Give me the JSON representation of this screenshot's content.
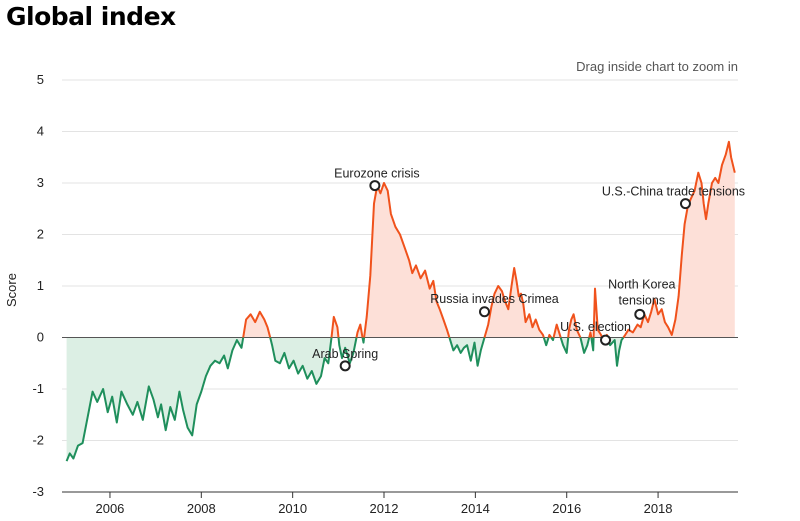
{
  "header": {
    "title": "Global index"
  },
  "chart_hint": "Drag inside chart to zoom in",
  "chart_data": {
    "type": "area",
    "title": "Global index",
    "xlabel": "",
    "ylabel": "Score",
    "xlim": [
      2004.95,
      2019.75
    ],
    "ylim": [
      -3,
      5
    ],
    "y_ticks": [
      5,
      4,
      3,
      2,
      1,
      0,
      -1,
      -2,
      -3
    ],
    "x_ticks": [
      2006,
      2008,
      2010,
      2012,
      2014,
      2016,
      2018
    ],
    "grid": true,
    "colors": {
      "positive": "#f0521c",
      "negative": "#1f8f5c",
      "positive_fill": "#fde0d8",
      "negative_fill": "#dcefe4"
    },
    "series": [
      {
        "values": [
          [
            2005.05,
            -2.4
          ],
          [
            2005.12,
            -2.25
          ],
          [
            2005.2,
            -2.35
          ],
          [
            2005.3,
            -2.1
          ],
          [
            2005.4,
            -2.05
          ],
          [
            2005.5,
            -1.6
          ],
          [
            2005.62,
            -1.05
          ],
          [
            2005.72,
            -1.25
          ],
          [
            2005.85,
            -1.0
          ],
          [
            2005.95,
            -1.45
          ],
          [
            2006.05,
            -1.15
          ],
          [
            2006.15,
            -1.65
          ],
          [
            2006.25,
            -1.05
          ],
          [
            2006.38,
            -1.3
          ],
          [
            2006.5,
            -1.5
          ],
          [
            2006.6,
            -1.25
          ],
          [
            2006.72,
            -1.6
          ],
          [
            2006.85,
            -0.95
          ],
          [
            2006.95,
            -1.2
          ],
          [
            2007.05,
            -1.55
          ],
          [
            2007.12,
            -1.3
          ],
          [
            2007.22,
            -1.8
          ],
          [
            2007.32,
            -1.35
          ],
          [
            2007.42,
            -1.6
          ],
          [
            2007.52,
            -1.05
          ],
          [
            2007.6,
            -1.4
          ],
          [
            2007.7,
            -1.75
          ],
          [
            2007.8,
            -1.9
          ],
          [
            2007.9,
            -1.3
          ],
          [
            2008.0,
            -1.05
          ],
          [
            2008.1,
            -0.75
          ],
          [
            2008.2,
            -0.55
          ],
          [
            2008.3,
            -0.45
          ],
          [
            2008.4,
            -0.5
          ],
          [
            2008.5,
            -0.35
          ],
          [
            2008.58,
            -0.6
          ],
          [
            2008.68,
            -0.25
          ],
          [
            2008.78,
            -0.05
          ],
          [
            2008.88,
            -0.2
          ],
          [
            2008.98,
            0.35
          ],
          [
            2009.08,
            0.45
          ],
          [
            2009.18,
            0.3
          ],
          [
            2009.28,
            0.5
          ],
          [
            2009.38,
            0.35
          ],
          [
            2009.45,
            0.2
          ],
          [
            2009.55,
            -0.15
          ],
          [
            2009.62,
            -0.45
          ],
          [
            2009.72,
            -0.5
          ],
          [
            2009.82,
            -0.3
          ],
          [
            2009.92,
            -0.6
          ],
          [
            2010.02,
            -0.45
          ],
          [
            2010.12,
            -0.7
          ],
          [
            2010.22,
            -0.55
          ],
          [
            2010.32,
            -0.8
          ],
          [
            2010.42,
            -0.65
          ],
          [
            2010.52,
            -0.9
          ],
          [
            2010.62,
            -0.75
          ],
          [
            2010.7,
            -0.4
          ],
          [
            2010.78,
            -0.5
          ],
          [
            2010.85,
            0.0
          ],
          [
            2010.9,
            0.4
          ],
          [
            2010.98,
            0.2
          ],
          [
            2011.02,
            -0.15
          ],
          [
            2011.08,
            -0.4
          ],
          [
            2011.15,
            -0.2
          ],
          [
            2011.25,
            -0.5
          ],
          [
            2011.33,
            -0.3
          ],
          [
            2011.42,
            0.1
          ],
          [
            2011.48,
            0.25
          ],
          [
            2011.55,
            -0.1
          ],
          [
            2011.62,
            0.4
          ],
          [
            2011.7,
            1.2
          ],
          [
            2011.78,
            2.6
          ],
          [
            2011.85,
            2.95
          ],
          [
            2011.92,
            2.8
          ],
          [
            2012.0,
            3.0
          ],
          [
            2012.08,
            2.85
          ],
          [
            2012.15,
            2.4
          ],
          [
            2012.25,
            2.15
          ],
          [
            2012.35,
            2.0
          ],
          [
            2012.45,
            1.75
          ],
          [
            2012.55,
            1.5
          ],
          [
            2012.62,
            1.25
          ],
          [
            2012.7,
            1.4
          ],
          [
            2012.8,
            1.15
          ],
          [
            2012.9,
            1.3
          ],
          [
            2013.0,
            0.95
          ],
          [
            2013.08,
            1.1
          ],
          [
            2013.15,
            0.7
          ],
          [
            2013.22,
            0.55
          ],
          [
            2013.3,
            0.35
          ],
          [
            2013.38,
            0.15
          ],
          [
            2013.45,
            -0.05
          ],
          [
            2013.52,
            -0.25
          ],
          [
            2013.6,
            -0.15
          ],
          [
            2013.68,
            -0.3
          ],
          [
            2013.75,
            -0.2
          ],
          [
            2013.82,
            -0.15
          ],
          [
            2013.9,
            -0.45
          ],
          [
            2013.98,
            -0.1
          ],
          [
            2014.05,
            -0.55
          ],
          [
            2014.12,
            -0.25
          ],
          [
            2014.2,
            0.0
          ],
          [
            2014.28,
            0.25
          ],
          [
            2014.35,
            0.6
          ],
          [
            2014.42,
            0.85
          ],
          [
            2014.5,
            1.0
          ],
          [
            2014.58,
            0.9
          ],
          [
            2014.65,
            0.7
          ],
          [
            2014.72,
            0.55
          ],
          [
            2014.8,
            1.05
          ],
          [
            2014.85,
            1.35
          ],
          [
            2014.9,
            1.1
          ],
          [
            2014.95,
            0.8
          ],
          [
            2015.0,
            0.85
          ],
          [
            2015.05,
            0.65
          ],
          [
            2015.1,
            0.3
          ],
          [
            2015.18,
            0.45
          ],
          [
            2015.25,
            0.2
          ],
          [
            2015.32,
            0.35
          ],
          [
            2015.4,
            0.15
          ],
          [
            2015.48,
            0.05
          ],
          [
            2015.55,
            -0.15
          ],
          [
            2015.62,
            0.05
          ],
          [
            2015.7,
            -0.05
          ],
          [
            2015.78,
            0.25
          ],
          [
            2015.85,
            0.05
          ],
          [
            2015.92,
            -0.15
          ],
          [
            2016.0,
            -0.3
          ],
          [
            2016.05,
            0.15
          ],
          [
            2016.1,
            0.35
          ],
          [
            2016.15,
            0.45
          ],
          [
            2016.22,
            0.15
          ],
          [
            2016.3,
            0.0
          ],
          [
            2016.38,
            -0.3
          ],
          [
            2016.45,
            -0.15
          ],
          [
            2016.52,
            0.1
          ],
          [
            2016.58,
            -0.25
          ],
          [
            2016.62,
            0.95
          ],
          [
            2016.68,
            0.15
          ],
          [
            2016.75,
            0.05
          ],
          [
            2016.82,
            -0.1
          ],
          [
            2016.88,
            0.05
          ],
          [
            2016.95,
            -0.15
          ],
          [
            2017.05,
            -0.05
          ],
          [
            2017.1,
            -0.55
          ],
          [
            2017.15,
            -0.25
          ],
          [
            2017.2,
            -0.05
          ],
          [
            2017.28,
            0.05
          ],
          [
            2017.35,
            0.15
          ],
          [
            2017.45,
            0.1
          ],
          [
            2017.55,
            0.25
          ],
          [
            2017.62,
            0.2
          ],
          [
            2017.7,
            0.45
          ],
          [
            2017.78,
            0.3
          ],
          [
            2017.85,
            0.5
          ],
          [
            2017.92,
            0.75
          ],
          [
            2018.0,
            0.45
          ],
          [
            2018.08,
            0.55
          ],
          [
            2018.15,
            0.3
          ],
          [
            2018.22,
            0.2
          ],
          [
            2018.3,
            0.05
          ],
          [
            2018.38,
            0.35
          ],
          [
            2018.45,
            0.8
          ],
          [
            2018.52,
            1.6
          ],
          [
            2018.58,
            2.2
          ],
          [
            2018.65,
            2.55
          ],
          [
            2018.72,
            2.7
          ],
          [
            2018.8,
            2.85
          ],
          [
            2018.88,
            3.2
          ],
          [
            2018.95,
            3.0
          ],
          [
            2019.0,
            2.6
          ],
          [
            2019.05,
            2.3
          ],
          [
            2019.1,
            2.6
          ],
          [
            2019.18,
            3.0
          ],
          [
            2019.25,
            3.1
          ],
          [
            2019.32,
            3.0
          ],
          [
            2019.4,
            3.35
          ],
          [
            2019.48,
            3.55
          ],
          [
            2019.55,
            3.8
          ],
          [
            2019.6,
            3.5
          ],
          [
            2019.68,
            3.2
          ]
        ]
      }
    ],
    "annotations": [
      {
        "label": "Eurozone crisis",
        "x": 2011.8,
        "y": 2.95
      },
      {
        "label": "Arab Spring",
        "x": 2011.15,
        "y": -0.55
      },
      {
        "label": "Russia invades Crimea",
        "x": 2014.2,
        "y": 0.5
      },
      {
        "label": "U.S. election",
        "x": 2016.85,
        "y": -0.05
      },
      {
        "label": "North Korea tensions",
        "x": 2017.6,
        "y": 0.45
      },
      {
        "label": "U.S.-China trade tensions",
        "x": 2018.6,
        "y": 2.6
      }
    ]
  }
}
